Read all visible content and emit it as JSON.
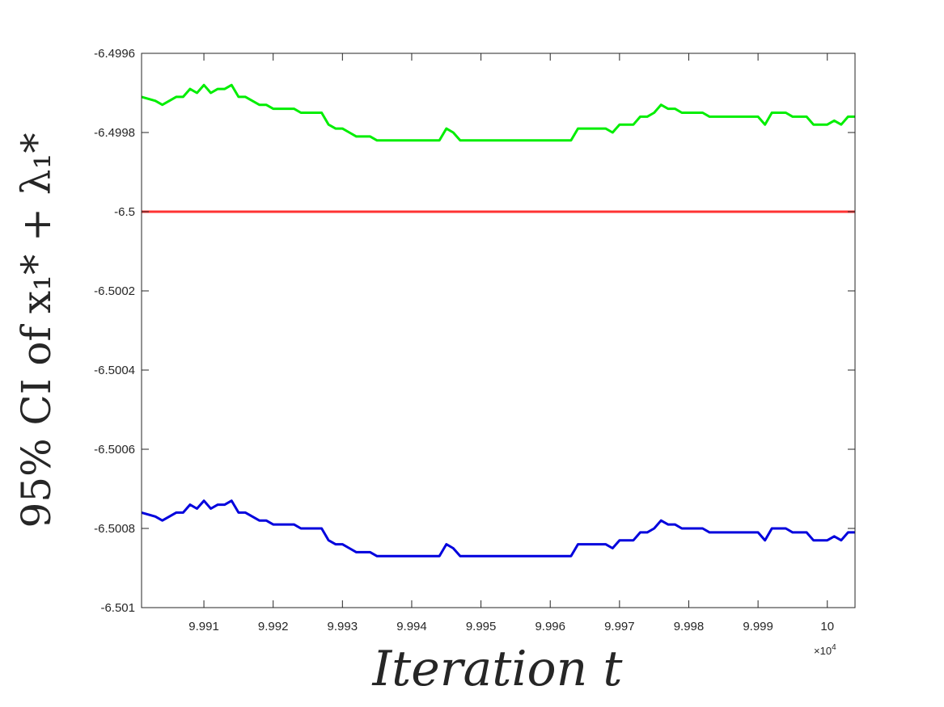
{
  "chart_data": {
    "type": "line",
    "xlabel": "Iteration t",
    "ylabel": "95% CI of x₁* + λ₁*",
    "x_exponent_label": "×10",
    "x_exponent_power": "4",
    "xlim": [
      99901,
      100004
    ],
    "ylim": [
      -6.501,
      -6.4996
    ],
    "x_ticks": [
      99910,
      99920,
      99930,
      99940,
      99950,
      99960,
      99970,
      99980,
      99990,
      100000
    ],
    "x_tick_labels": [
      "9.991",
      "9.992",
      "9.993",
      "9.994",
      "9.995",
      "9.996",
      "9.997",
      "9.998",
      "9.999",
      "10"
    ],
    "y_ticks": [
      -6.4996,
      -6.4998,
      -6.5,
      -6.5002,
      -6.5004,
      -6.5006,
      -6.5008,
      -6.501
    ],
    "y_tick_labels": [
      "-6.4996",
      "-6.4998",
      "-6.5",
      "-6.5002",
      "-6.5004",
      "-6.5006",
      "-6.5008",
      "-6.501"
    ],
    "grid": false,
    "colors": {
      "upper": "#00ee00",
      "lower": "#0000dd",
      "true": "#ff3333"
    },
    "series": [
      {
        "key": "upper",
        "x": [
          99901,
          99903,
          99904,
          99905,
          99906,
          99907,
          99908,
          99909,
          99910,
          99911,
          99912,
          99913,
          99914,
          99915,
          99916,
          99917,
          99918,
          99919,
          99920,
          99921,
          99922,
          99923,
          99924,
          99925,
          99926,
          99927,
          99928,
          99929,
          99930,
          99931,
          99932,
          99933,
          99934,
          99935,
          99936,
          99937,
          99938,
          99939,
          99940,
          99941,
          99942,
          99943,
          99944,
          99945,
          99946,
          99947,
          99948,
          99949,
          99950,
          99951,
          99952,
          99953,
          99954,
          99955,
          99956,
          99957,
          99958,
          99959,
          99960,
          99961,
          99962,
          99963,
          99964,
          99965,
          99966,
          99967,
          99968,
          99969,
          99970,
          99971,
          99972,
          99973,
          99974,
          99975,
          99976,
          99977,
          99978,
          99979,
          99980,
          99981,
          99982,
          99983,
          99984,
          99985,
          99986,
          99987,
          99988,
          99989,
          99990,
          99991,
          99992,
          99993,
          99994,
          99995,
          99996,
          99997,
          99998,
          99999,
          100000,
          100001,
          100002,
          100003,
          100004
        ],
        "y": [
          -6.49971,
          -6.49972,
          -6.49973,
          -6.49972,
          -6.49971,
          -6.49971,
          -6.49969,
          -6.4997,
          -6.49968,
          -6.4997,
          -6.49969,
          -6.49969,
          -6.49968,
          -6.49971,
          -6.49971,
          -6.49972,
          -6.49973,
          -6.49973,
          -6.49974,
          -6.49974,
          -6.49974,
          -6.49974,
          -6.49975,
          -6.49975,
          -6.49975,
          -6.49975,
          -6.49978,
          -6.49979,
          -6.49979,
          -6.4998,
          -6.49981,
          -6.49981,
          -6.49981,
          -6.49982,
          -6.49982,
          -6.49982,
          -6.49982,
          -6.49982,
          -6.49982,
          -6.49982,
          -6.49982,
          -6.49982,
          -6.49982,
          -6.49979,
          -6.4998,
          -6.49982,
          -6.49982,
          -6.49982,
          -6.49982,
          -6.49982,
          -6.49982,
          -6.49982,
          -6.49982,
          -6.49982,
          -6.49982,
          -6.49982,
          -6.49982,
          -6.49982,
          -6.49982,
          -6.49982,
          -6.49982,
          -6.49982,
          -6.49979,
          -6.49979,
          -6.49979,
          -6.49979,
          -6.49979,
          -6.4998,
          -6.49978,
          -6.49978,
          -6.49978,
          -6.49976,
          -6.49976,
          -6.49975,
          -6.49973,
          -6.49974,
          -6.49974,
          -6.49975,
          -6.49975,
          -6.49975,
          -6.49975,
          -6.49976,
          -6.49976,
          -6.49976,
          -6.49976,
          -6.49976,
          -6.49976,
          -6.49976,
          -6.49976,
          -6.49978,
          -6.49975,
          -6.49975,
          -6.49975,
          -6.49976,
          -6.49976,
          -6.49976,
          -6.49978,
          -6.49978,
          -6.49978,
          -6.49977,
          -6.49978,
          -6.49976,
          -6.49976
        ]
      },
      {
        "key": "lower",
        "x": [
          99901,
          99903,
          99904,
          99905,
          99906,
          99907,
          99908,
          99909,
          99910,
          99911,
          99912,
          99913,
          99914,
          99915,
          99916,
          99917,
          99918,
          99919,
          99920,
          99921,
          99922,
          99923,
          99924,
          99925,
          99926,
          99927,
          99928,
          99929,
          99930,
          99931,
          99932,
          99933,
          99934,
          99935,
          99936,
          99937,
          99938,
          99939,
          99940,
          99941,
          99942,
          99943,
          99944,
          99945,
          99946,
          99947,
          99948,
          99949,
          99950,
          99951,
          99952,
          99953,
          99954,
          99955,
          99956,
          99957,
          99958,
          99959,
          99960,
          99961,
          99962,
          99963,
          99964,
          99965,
          99966,
          99967,
          99968,
          99969,
          99970,
          99971,
          99972,
          99973,
          99974,
          99975,
          99976,
          99977,
          99978,
          99979,
          99980,
          99981,
          99982,
          99983,
          99984,
          99985,
          99986,
          99987,
          99988,
          99989,
          99990,
          99991,
          99992,
          99993,
          99994,
          99995,
          99996,
          99997,
          99998,
          99999,
          100000,
          100001,
          100002,
          100003,
          100004
        ],
        "y": [
          -6.50076,
          -6.50077,
          -6.50078,
          -6.50077,
          -6.50076,
          -6.50076,
          -6.50074,
          -6.50075,
          -6.50073,
          -6.50075,
          -6.50074,
          -6.50074,
          -6.50073,
          -6.50076,
          -6.50076,
          -6.50077,
          -6.50078,
          -6.50078,
          -6.50079,
          -6.50079,
          -6.50079,
          -6.50079,
          -6.5008,
          -6.5008,
          -6.5008,
          -6.5008,
          -6.50083,
          -6.50084,
          -6.50084,
          -6.50085,
          -6.50086,
          -6.50086,
          -6.50086,
          -6.50087,
          -6.50087,
          -6.50087,
          -6.50087,
          -6.50087,
          -6.50087,
          -6.50087,
          -6.50087,
          -6.50087,
          -6.50087,
          -6.50084,
          -6.50085,
          -6.50087,
          -6.50087,
          -6.50087,
          -6.50087,
          -6.50087,
          -6.50087,
          -6.50087,
          -6.50087,
          -6.50087,
          -6.50087,
          -6.50087,
          -6.50087,
          -6.50087,
          -6.50087,
          -6.50087,
          -6.50087,
          -6.50087,
          -6.50084,
          -6.50084,
          -6.50084,
          -6.50084,
          -6.50084,
          -6.50085,
          -6.50083,
          -6.50083,
          -6.50083,
          -6.50081,
          -6.50081,
          -6.5008,
          -6.50078,
          -6.50079,
          -6.50079,
          -6.5008,
          -6.5008,
          -6.5008,
          -6.5008,
          -6.50081,
          -6.50081,
          -6.50081,
          -6.50081,
          -6.50081,
          -6.50081,
          -6.50081,
          -6.50081,
          -6.50083,
          -6.5008,
          -6.5008,
          -6.5008,
          -6.50081,
          -6.50081,
          -6.50081,
          -6.50083,
          -6.50083,
          -6.50083,
          -6.50082,
          -6.50083,
          -6.50081,
          -6.50081
        ]
      },
      {
        "key": "true",
        "x": [
          99901,
          100004
        ],
        "y": [
          -6.5,
          -6.5
        ]
      }
    ]
  }
}
